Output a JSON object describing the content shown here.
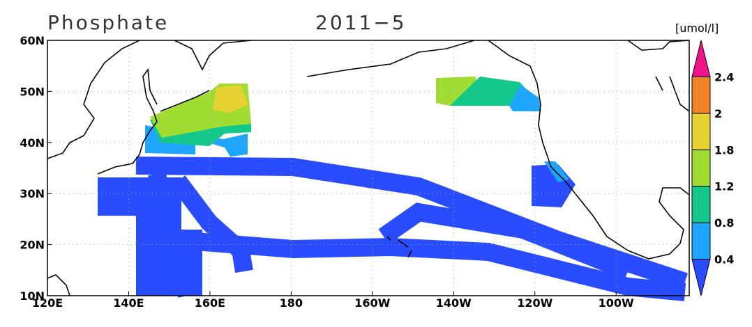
{
  "title": "Phosphate",
  "subtitle": "2011−5",
  "map": {
    "xlim": [
      120,
      278
    ],
    "ylim": [
      10,
      60
    ],
    "xticks": [
      {
        "value": 120,
        "label": "120E"
      },
      {
        "value": 140,
        "label": "140E"
      },
      {
        "value": 160,
        "label": "160E"
      },
      180,
      {
        "value": 200,
        "label": "160W"
      },
      {
        "value": 220,
        "label": "140W"
      },
      {
        "value": 240,
        "label": "120W"
      },
      {
        "value": 260,
        "label": "100W"
      }
    ],
    "yticks": [
      {
        "value": 10,
        "label": "10N"
      },
      {
        "value": 20,
        "label": "20N"
      },
      {
        "value": 30,
        "label": "30N"
      },
      {
        "value": 40,
        "label": "40N"
      },
      {
        "value": 50,
        "label": "50N"
      },
      {
        "value": 60,
        "label": "60N"
      }
    ],
    "grid": true
  },
  "colorbar": {
    "label": "[umol/l]",
    "levels": [
      0.4,
      0.8,
      1.2,
      1.8,
      2,
      2.4
    ],
    "colors": [
      "#2a4cff",
      "#1ea6ff",
      "#14c88c",
      "#a0dc32",
      "#e6d232",
      "#f08228",
      "#f0148c"
    ]
  }
}
